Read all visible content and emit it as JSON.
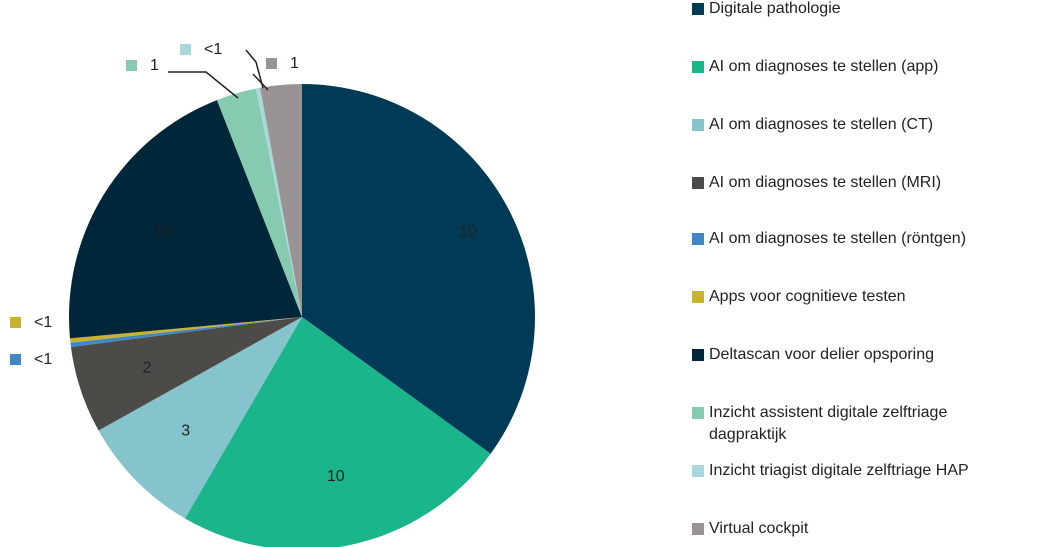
{
  "chart_data": {
    "type": "pie",
    "categories": [
      "Digitale pathologie",
      "AI om diagnoses te stellen (app)",
      "AI om diagnoses te stellen (CT)",
      "AI om diagnoses te stellen (MRI)",
      "AI om diagnoses te stellen (röntgen)",
      "Apps voor cognitieve testen",
      "Deltascan voor delier opsporing",
      "Inzicht assistent digitale zelftriage dagpraktijk",
      "Inzicht triagist digitale zelftriage HAP",
      "Virtual cockpit"
    ],
    "values": [
      35.3,
      23.6,
      8.6,
      6.1,
      0.3,
      0.3,
      20.7,
      2.8,
      0.3,
      2.9
    ],
    "value_labels": [
      "10",
      "10",
      "3",
      "2",
      "<1",
      "<1",
      "10",
      "1",
      "<1",
      "1"
    ],
    "colors": [
      "#003a57",
      "#1bb58b",
      "#85c4cc",
      "#4d4b48",
      "#3f88c5",
      "#c9b22e",
      "#00263a",
      "#86cbb0",
      "#a8d8dc",
      "#999493"
    ],
    "legend": "right"
  }
}
